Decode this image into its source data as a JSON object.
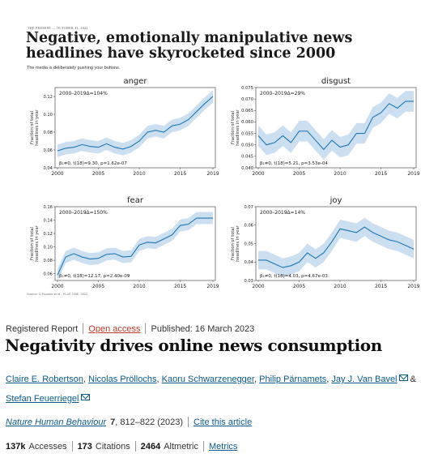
{
  "figure": {
    "kicker": "THE PRESENT — OCTOBER 31, 2022",
    "title": "Negative, emotionally manipulative news headlines have skyrocketed since 2000",
    "subtitle": "The media is deliberately pushing your buttons.",
    "source": "Source: D Rozado et al., PLoS ONE, 2022"
  },
  "chart_data": [
    {
      "type": "line",
      "title": "anger",
      "ylabel": "Fraction of total headlines in year",
      "x": [
        2000,
        2001,
        2002,
        2003,
        2004,
        2005,
        2006,
        2007,
        2008,
        2009,
        2010,
        2011,
        2012,
        2013,
        2014,
        2015,
        2016,
        2017,
        2018,
        2019
      ],
      "values": [
        0.059,
        0.062,
        0.063,
        0.066,
        0.064,
        0.063,
        0.067,
        0.063,
        0.061,
        0.064,
        0.07,
        0.08,
        0.082,
        0.08,
        0.087,
        0.089,
        0.094,
        0.103,
        0.112,
        0.12
      ],
      "band_halfwidth": 0.007,
      "ylim": [
        0.04,
        0.13
      ],
      "yticks": [
        0.04,
        0.06,
        0.08,
        0.1,
        0.12
      ],
      "xticks": [
        2000,
        2005,
        2010,
        2015,
        2019
      ],
      "annotation_top": "2000–2019Δ=104%",
      "annotation_bottom": "β₁≠0, t(18)=9.30, p=1.62e-07"
    },
    {
      "type": "line",
      "title": "disgust",
      "ylabel": "Fraction of total headlines in year",
      "x": [
        2000,
        2001,
        2002,
        2003,
        2004,
        2005,
        2006,
        2007,
        2008,
        2009,
        2010,
        2011,
        2012,
        2013,
        2014,
        2015,
        2016,
        2017,
        2018,
        2019
      ],
      "values": [
        0.054,
        0.05,
        0.051,
        0.054,
        0.051,
        0.056,
        0.056,
        0.052,
        0.048,
        0.052,
        0.049,
        0.05,
        0.055,
        0.055,
        0.062,
        0.064,
        0.068,
        0.066,
        0.069,
        0.069
      ],
      "band_halfwidth": 0.0045,
      "ylim": [
        0.04,
        0.075
      ],
      "yticks": [
        0.04,
        0.045,
        0.05,
        0.055,
        0.06,
        0.065,
        0.07,
        0.075
      ],
      "xticks": [
        2000,
        2005,
        2010,
        2015,
        2019
      ],
      "annotation_top": "2000–2019Δ=29%",
      "annotation_bottom": "β₁≠0, t(18)=5.21, p=3.53e-04"
    },
    {
      "type": "line",
      "title": "fear",
      "ylabel": "Fraction of total headlines in year",
      "x": [
        2000,
        2001,
        2002,
        2003,
        2004,
        2005,
        2006,
        2007,
        2008,
        2009,
        2010,
        2011,
        2012,
        2013,
        2014,
        2015,
        2016,
        2017,
        2018,
        2019
      ],
      "values": [
        0.058,
        0.085,
        0.09,
        0.085,
        0.082,
        0.083,
        0.089,
        0.09,
        0.085,
        0.086,
        0.103,
        0.107,
        0.106,
        0.112,
        0.118,
        0.132,
        0.134,
        0.143,
        0.143,
        0.143
      ],
      "band_halfwidth": 0.009,
      "ylim": [
        0.05,
        0.16
      ],
      "yticks": [
        0.06,
        0.08,
        0.1,
        0.12,
        0.14,
        0.16
      ],
      "xticks": [
        2000,
        2005,
        2010,
        2015,
        2019
      ],
      "annotation_top": "2000–2019Δ=150%",
      "annotation_bottom": "β₁≠0, t(18)=12.17, p=2.40e-09"
    },
    {
      "type": "line",
      "title": "joy",
      "ylabel": "Fraction of total headlines in year",
      "x": [
        2000,
        2001,
        2002,
        2003,
        2004,
        2005,
        2006,
        2007,
        2008,
        2009,
        2010,
        2011,
        2012,
        2013,
        2014,
        2015,
        2016,
        2017,
        2018,
        2019
      ],
      "values": [
        0.041,
        0.041,
        0.039,
        0.037,
        0.038,
        0.04,
        0.045,
        0.042,
        0.045,
        0.051,
        0.058,
        0.057,
        0.056,
        0.059,
        0.056,
        0.054,
        0.052,
        0.051,
        0.049,
        0.047
      ],
      "band_halfwidth": 0.005,
      "ylim": [
        0.03,
        0.07
      ],
      "yticks": [
        0.03,
        0.04,
        0.05,
        0.06,
        0.07
      ],
      "xticks": [
        2000,
        2005,
        2010,
        2015,
        2019
      ],
      "annotation_top": "2000–2019Δ=14%",
      "annotation_bottom": "β₁≠0, t(18)=4.03, p=4.67e-03"
    }
  ],
  "article": {
    "type": "Registered Report",
    "access": "Open access",
    "published": "Published: 16 March 2023",
    "title": "Negativity drives online news consumption",
    "authors": [
      "Claire E. Robertson",
      "Nicolas Pröllochs",
      "Kaoru Schwarzenegger",
      "Philip Pärnamets",
      "Jay J. Van Bavel",
      "Stefan Feuerriegel"
    ],
    "ampersand": "&",
    "journal": "Nature Human Behaviour",
    "volume": "7",
    "pages": ", 812–822 (2023)",
    "cite": "Cite this article",
    "accesses_count": "137k",
    "accesses_label": "Accesses",
    "citations_count": "173",
    "citations_label": "Citations",
    "altmetric_count": "2464",
    "altmetric_label": "Altmetric",
    "metrics": "Metrics",
    "line_color": "#1f77b4",
    "band_color": "#c6dbef",
    "link_color": "#0c5a8a",
    "open_access_color": "#c0392b"
  }
}
